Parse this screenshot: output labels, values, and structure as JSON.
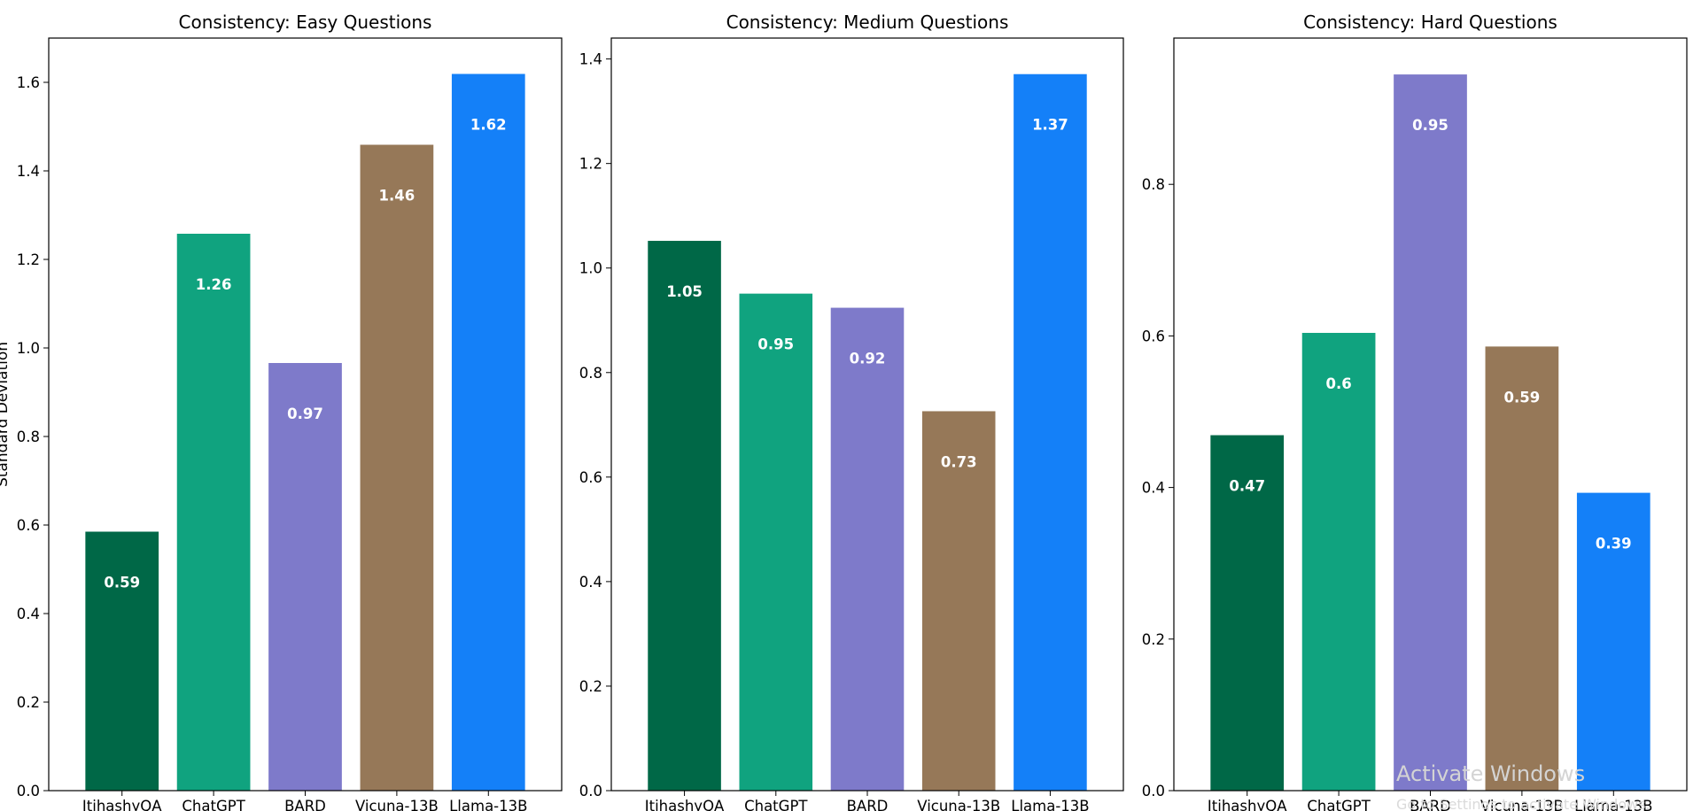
{
  "y_axis_label": "Standard Deviation",
  "watermark": {
    "line1": "Activate Windows",
    "line2": "Go to Settings to activate Windows."
  },
  "chart_data": [
    {
      "type": "bar",
      "title": "Consistency: Easy Questions",
      "ylabel": "Standard Deviation",
      "categories": [
        "ItihashyQA",
        "ChatGPT",
        "BARD",
        "Vicuna-13B",
        "Llama-13B"
      ],
      "values": [
        0.585,
        1.258,
        0.966,
        1.459,
        1.619
      ],
      "value_labels": [
        "0.59",
        "1.26",
        "0.97",
        "1.46",
        "1.62"
      ],
      "colors": [
        "#006847",
        "#10a37f",
        "#7e7aca",
        "#967858",
        "#1480f8"
      ],
      "ylim": [
        0,
        1.7
      ],
      "yticks": [
        0.0,
        0.2,
        0.4,
        0.6,
        0.8,
        1.0,
        1.2,
        1.4,
        1.6
      ],
      "ytick_labels": [
        "0.0",
        "0.2",
        "0.4",
        "0.6",
        "0.8",
        "1.0",
        "1.2",
        "1.4",
        "1.6"
      ]
    },
    {
      "type": "bar",
      "title": "Consistency: Medium Questions",
      "categories": [
        "ItihashyQA",
        "ChatGPT",
        "BARD",
        "Vicuna-13B",
        "Llama-13B"
      ],
      "values": [
        1.052,
        0.951,
        0.924,
        0.726,
        1.371
      ],
      "value_labels": [
        "1.05",
        "0.95",
        "0.92",
        "0.73",
        "1.37"
      ],
      "colors": [
        "#006847",
        "#10a37f",
        "#7e7aca",
        "#967858",
        "#1480f8"
      ],
      "ylim": [
        0,
        1.44
      ],
      "yticks": [
        0.0,
        0.2,
        0.4,
        0.6,
        0.8,
        1.0,
        1.2,
        1.4
      ],
      "ytick_labels": [
        "0.0",
        "0.2",
        "0.4",
        "0.6",
        "0.8",
        "1.0",
        "1.2",
        "1.4"
      ]
    },
    {
      "type": "bar",
      "title": "Consistency: Hard Questions",
      "categories": [
        "ItihashyQA",
        "ChatGPT",
        "BARD",
        "Vicuna-13B",
        "Llama-13B"
      ],
      "values": [
        0.469,
        0.604,
        0.945,
        0.586,
        0.393
      ],
      "value_labels": [
        "0.47",
        "0.6",
        "0.95",
        "0.59",
        "0.39"
      ],
      "colors": [
        "#006847",
        "#10a37f",
        "#7e7aca",
        "#967858",
        "#1480f8"
      ],
      "ylim": [
        0,
        0.993
      ],
      "yticks": [
        0.0,
        0.2,
        0.4,
        0.6,
        0.8
      ],
      "ytick_labels": [
        "0.0",
        "0.2",
        "0.4",
        "0.6",
        "0.8"
      ]
    }
  ]
}
